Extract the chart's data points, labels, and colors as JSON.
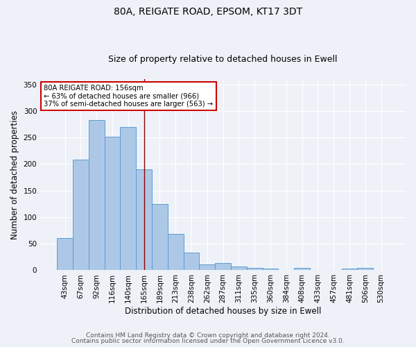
{
  "title1": "80A, REIGATE ROAD, EPSOM, KT17 3DT",
  "title2": "Size of property relative to detached houses in Ewell",
  "xlabel": "Distribution of detached houses by size in Ewell",
  "ylabel": "Number of detached properties",
  "categories": [
    "43sqm",
    "67sqm",
    "92sqm",
    "116sqm",
    "140sqm",
    "165sqm",
    "189sqm",
    "213sqm",
    "238sqm",
    "262sqm",
    "287sqm",
    "311sqm",
    "335sqm",
    "360sqm",
    "384sqm",
    "408sqm",
    "433sqm",
    "457sqm",
    "481sqm",
    "506sqm",
    "530sqm"
  ],
  "values": [
    61,
    209,
    283,
    251,
    270,
    190,
    125,
    69,
    33,
    11,
    14,
    7,
    5,
    3,
    0,
    4,
    0,
    0,
    3,
    4,
    0
  ],
  "bar_color": "#adc8e6",
  "bar_edge_color": "#5b9bd5",
  "highlight_index": 5,
  "highlight_line_color": "#8b0000",
  "annotation_line1": "80A REIGATE ROAD: 156sqm",
  "annotation_line2": "← 63% of detached houses are smaller (966)",
  "annotation_line3": "37% of semi-detached houses are larger (563) →",
  "annotation_box_color": "#ffffff",
  "annotation_box_edge_color": "#cc0000",
  "ylim": [
    0,
    360
  ],
  "yticks": [
    0,
    50,
    100,
    150,
    200,
    250,
    300,
    350
  ],
  "footer1": "Contains HM Land Registry data © Crown copyright and database right 2024.",
  "footer2": "Contains public sector information licensed under the Open Government Licence v3.0.",
  "bg_color": "#eef2f8",
  "title_fontsize": 10,
  "subtitle_fontsize": 9,
  "axis_label_fontsize": 8.5,
  "tick_fontsize": 7.5,
  "footer_fontsize": 6.5
}
